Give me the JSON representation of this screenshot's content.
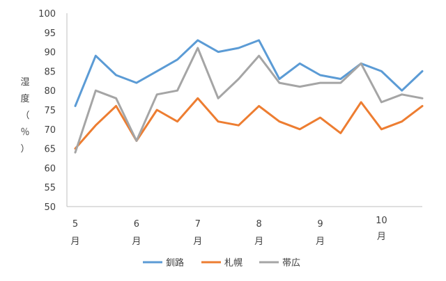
{
  "chart_data": {
    "type": "line",
    "title": "",
    "xlabel": "",
    "ylabel": "湿度（％）",
    "ylabel_chars": [
      "湿",
      "度",
      "（",
      "％",
      "）"
    ],
    "ylim": [
      50,
      100
    ],
    "yticks": [
      50,
      55,
      60,
      65,
      70,
      75,
      80,
      85,
      90,
      95,
      100
    ],
    "grid": false,
    "legend_position": "bottom",
    "month_labels": [
      {
        "num": "5",
        "unit": "月",
        "at": 0
      },
      {
        "num": "6",
        "unit": "月",
        "at": 3
      },
      {
        "num": "7",
        "unit": "月",
        "at": 6
      },
      {
        "num": "8",
        "unit": "月",
        "at": 9
      },
      {
        "num": "9",
        "unit": "月",
        "at": 12
      },
      {
        "num": "10",
        "unit": "月",
        "at": 15
      }
    ],
    "series": [
      {
        "name": "釧路",
        "color": "#5B9BD5",
        "values": [
          76,
          89,
          84,
          82,
          85,
          88,
          93,
          90,
          91,
          93,
          83,
          87,
          84,
          83,
          87,
          85,
          80,
          85
        ]
      },
      {
        "name": "札幌",
        "color": "#ED7D31",
        "values": [
          65,
          71,
          76,
          67,
          75,
          72,
          78,
          72,
          71,
          76,
          72,
          70,
          73,
          69,
          77,
          70,
          72,
          76
        ]
      },
      {
        "name": "帯広",
        "color": "#A5A5A5",
        "values": [
          64,
          80,
          78,
          67,
          79,
          80,
          91,
          78,
          83,
          89,
          82,
          81,
          82,
          82,
          87,
          77,
          79,
          78
        ]
      }
    ]
  }
}
